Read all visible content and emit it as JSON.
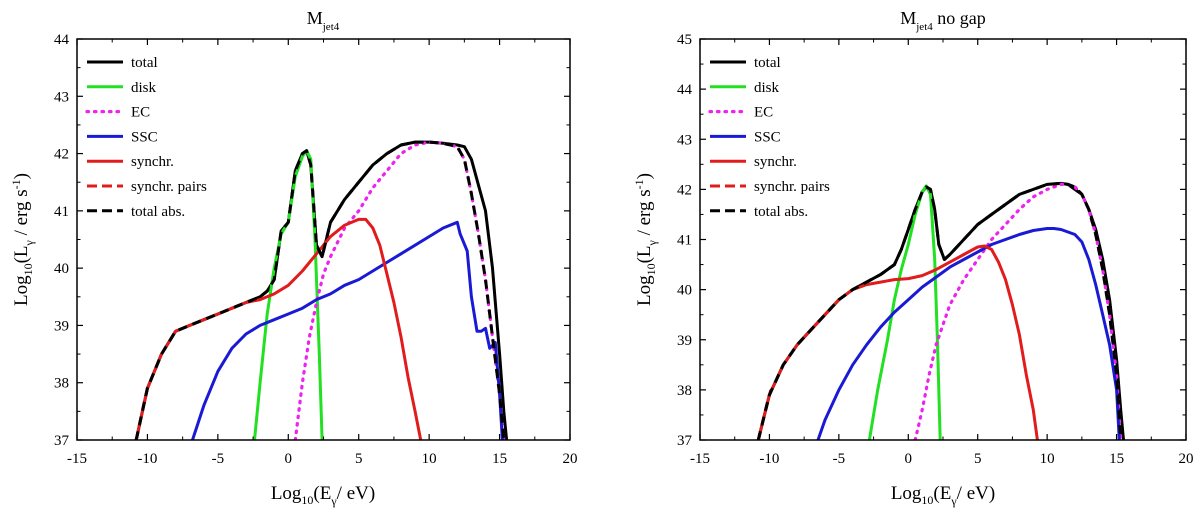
{
  "chart_data": [
    {
      "type": "line",
      "title": {
        "main": "M",
        "sub": "jet4",
        "suffix": ""
      },
      "xlabel": {
        "prefix": "Log",
        "base": "10",
        "open": "(E",
        "gamma": "γ",
        "rest": "/ eV)"
      },
      "ylabel": {
        "prefix": "Log",
        "base": "10",
        "open": "(L",
        "gamma": "γ",
        "rest": " / erg s",
        "exp": "-1",
        "close": ")"
      },
      "xlim": [
        -15,
        20
      ],
      "ylim": [
        37,
        44
      ],
      "xticks": [
        -15,
        -10,
        -5,
        0,
        5,
        10,
        15,
        20
      ],
      "yticks": [
        37,
        38,
        39,
        40,
        41,
        42,
        43,
        44
      ],
      "legend_position": "top-left",
      "series": [
        {
          "name": "total",
          "color": "#000000",
          "dash": "solid",
          "x": [
            -10.8,
            -10,
            -9,
            -8,
            -7,
            -6,
            -5,
            -4,
            -3,
            -2,
            -1.5,
            -1,
            -0.5,
            0,
            0.5,
            1,
            1.3,
            1.6,
            2.0,
            2.4,
            3.0,
            4,
            5,
            6,
            7,
            8,
            9,
            10,
            11,
            12,
            12.5,
            13,
            14,
            14.5,
            15,
            15.3,
            15.5
          ],
          "y": [
            37.0,
            37.9,
            38.5,
            38.9,
            39.0,
            39.1,
            39.2,
            39.3,
            39.4,
            39.5,
            39.6,
            39.8,
            40.65,
            40.8,
            41.7,
            42.0,
            42.05,
            41.8,
            40.4,
            40.2,
            40.8,
            41.2,
            41.5,
            41.8,
            42.0,
            42.15,
            42.2,
            42.2,
            42.18,
            42.15,
            42.12,
            41.9,
            41.0,
            40.0,
            38.5,
            37.5,
            37.0
          ]
        },
        {
          "name": "disk",
          "color": "#22e022",
          "dash": "solid",
          "x": [
            -2.4,
            -2.0,
            -1.5,
            -1,
            -0.5,
            0,
            0.5,
            1,
            1.3,
            1.6,
            1.9,
            2.2,
            2.4
          ],
          "y": [
            37.0,
            38.0,
            39.2,
            40.0,
            40.6,
            40.8,
            41.6,
            41.95,
            42.05,
            41.9,
            40.5,
            38.5,
            37.0
          ]
        },
        {
          "name": "EC",
          "color": "#ee22ee",
          "dash": "dot",
          "x": [
            0.5,
            1.0,
            1.5,
            2.0,
            2.5,
            3,
            4,
            5,
            6,
            7,
            8,
            9,
            10,
            11,
            12,
            12.5,
            13,
            13.5,
            14,
            14.5,
            15,
            15.3
          ],
          "y": [
            37.0,
            38.0,
            38.8,
            39.4,
            39.9,
            40.2,
            40.7,
            41.0,
            41.4,
            41.7,
            42.0,
            42.15,
            42.2,
            42.18,
            42.12,
            41.9,
            41.3,
            40.6,
            39.8,
            38.8,
            37.8,
            37.0
          ]
        },
        {
          "name": "SSC",
          "color": "#1a1ad4",
          "dash": "solid",
          "x": [
            -6.8,
            -6,
            -5,
            -4,
            -3,
            -2,
            -1,
            0,
            1,
            2,
            3,
            4,
            5,
            6,
            7,
            8,
            9,
            10,
            11,
            12,
            12.2,
            12.7,
            13.0,
            13.4,
            13.7,
            14.0,
            14.3,
            14.7,
            15.0,
            15.2
          ],
          "y": [
            37.0,
            37.6,
            38.2,
            38.6,
            38.85,
            39.0,
            39.1,
            39.2,
            39.3,
            39.45,
            39.55,
            39.7,
            39.8,
            39.95,
            40.1,
            40.25,
            40.4,
            40.55,
            40.7,
            40.8,
            40.6,
            40.3,
            39.5,
            38.9,
            38.9,
            38.95,
            38.6,
            38.7,
            37.8,
            37.0
          ]
        },
        {
          "name": "synchr.",
          "color": "#e01c1c",
          "dash": "solid",
          "x": [
            -10.8,
            -10,
            -9,
            -8,
            -7,
            -6,
            -5,
            -4,
            -3,
            -2,
            -1,
            0,
            1,
            2,
            3,
            4,
            5,
            5.5,
            6,
            6.5,
            7,
            7.5,
            8,
            8.5,
            9,
            9.4
          ],
          "y": [
            37.0,
            37.9,
            38.5,
            38.9,
            39.0,
            39.1,
            39.2,
            39.3,
            39.4,
            39.45,
            39.55,
            39.7,
            39.95,
            40.25,
            40.55,
            40.75,
            40.85,
            40.85,
            40.7,
            40.4,
            39.9,
            39.4,
            38.8,
            38.1,
            37.5,
            37.0
          ]
        },
        {
          "name": "synchr. pairs",
          "color": "#e01c1c",
          "dash": "dash",
          "x": [
            -10.8,
            -10.5,
            -10.2,
            -9.9
          ],
          "y": [
            37.0,
            37.35,
            37.7,
            38.0
          ]
        },
        {
          "name": "total abs.",
          "color": "#000000",
          "dash": "dash",
          "x": [
            -10.8,
            -10,
            -9,
            -8,
            -7,
            -6,
            -5,
            -4,
            -3,
            -2,
            -1.5,
            -1,
            -0.5,
            0,
            0.5,
            1,
            1.3,
            1.6,
            2.0,
            2.4,
            3,
            4,
            5,
            6,
            7,
            8,
            9,
            10,
            11,
            12,
            12.5,
            13,
            13.5,
            14,
            14.5,
            15,
            15.3
          ],
          "y": [
            37.0,
            37.9,
            38.5,
            38.9,
            39.0,
            39.1,
            39.2,
            39.3,
            39.4,
            39.5,
            39.6,
            39.8,
            40.65,
            40.8,
            41.7,
            42.0,
            42.05,
            41.8,
            40.4,
            40.2,
            40.8,
            41.2,
            41.5,
            41.8,
            42.0,
            42.15,
            42.2,
            42.2,
            42.18,
            42.12,
            41.9,
            41.3,
            40.6,
            39.8,
            38.8,
            37.8,
            37.0
          ]
        }
      ]
    },
    {
      "type": "line",
      "title": {
        "main": "M",
        "sub": "jet4",
        "suffix": " no gap"
      },
      "xlabel": {
        "prefix": "Log",
        "base": "10",
        "open": "(E",
        "gamma": "γ",
        "rest": "/ eV)"
      },
      "ylabel": {
        "prefix": "Log",
        "base": "10",
        "open": "(L",
        "gamma": "γ",
        "rest": " / erg s",
        "exp": "-1",
        "close": ")"
      },
      "xlim": [
        -15,
        20
      ],
      "ylim": [
        37,
        45
      ],
      "xticks": [
        -15,
        -10,
        -5,
        0,
        5,
        10,
        15,
        20
      ],
      "yticks": [
        37,
        38,
        39,
        40,
        41,
        42,
        43,
        44,
        45
      ],
      "legend_position": "top-left",
      "series": [
        {
          "name": "total",
          "color": "#000000",
          "dash": "solid",
          "x": [
            -10.8,
            -10,
            -9,
            -8,
            -7,
            -6,
            -5,
            -4,
            -3,
            -2,
            -1,
            -0.5,
            0,
            0.5,
            1,
            1.3,
            1.6,
            1.9,
            2.2,
            2.6,
            3,
            4,
            5,
            6,
            7,
            8,
            9,
            10,
            11,
            11.5,
            12,
            12.5,
            13,
            13.5,
            14,
            14.5,
            15,
            15.3,
            15.5
          ],
          "y": [
            37.0,
            37.9,
            38.5,
            38.9,
            39.2,
            39.5,
            39.8,
            40.0,
            40.15,
            40.3,
            40.5,
            40.8,
            41.2,
            41.6,
            41.95,
            42.05,
            42.0,
            41.6,
            40.9,
            40.6,
            40.7,
            41.0,
            41.3,
            41.5,
            41.7,
            41.9,
            42.0,
            42.1,
            42.12,
            42.1,
            42.0,
            41.9,
            41.6,
            41.2,
            40.6,
            39.8,
            38.6,
            37.6,
            37.0
          ]
        },
        {
          "name": "disk",
          "color": "#22e022",
          "dash": "solid",
          "x": [
            -2.8,
            -2.2,
            -1.5,
            -1,
            -0.5,
            0,
            0.5,
            1,
            1.3,
            1.6,
            1.9,
            2.1,
            2.3
          ],
          "y": [
            37.0,
            38.0,
            39.0,
            39.8,
            40.4,
            40.9,
            41.5,
            41.95,
            42.07,
            41.9,
            40.6,
            39.0,
            37.0
          ]
        },
        {
          "name": "EC",
          "color": "#ee22ee",
          "dash": "dot",
          "x": [
            0.5,
            1,
            1.5,
            2,
            2.5,
            3,
            4,
            5,
            6,
            7,
            8,
            9,
            10,
            11,
            11.5,
            12,
            12.5,
            13,
            13.5,
            14,
            14.5,
            15,
            15.3
          ],
          "y": [
            37.0,
            37.6,
            38.3,
            38.9,
            39.3,
            39.7,
            40.2,
            40.6,
            41.0,
            41.3,
            41.6,
            41.85,
            42.0,
            42.1,
            42.1,
            42.05,
            41.9,
            41.6,
            41.1,
            40.4,
            39.5,
            38.3,
            37.0
          ]
        },
        {
          "name": "SSC",
          "color": "#1a1ad4",
          "dash": "solid",
          "x": [
            -6.5,
            -6,
            -5,
            -4,
            -3,
            -2,
            -1,
            0,
            1,
            2,
            3,
            4,
            5,
            6,
            7,
            8,
            9,
            10,
            10.5,
            11,
            11.5,
            12,
            12.5,
            13,
            13.5,
            14,
            14.5,
            15,
            15.2
          ],
          "y": [
            37.0,
            37.4,
            38.0,
            38.5,
            38.9,
            39.25,
            39.55,
            39.8,
            40.05,
            40.25,
            40.45,
            40.6,
            40.75,
            40.9,
            41.0,
            41.1,
            41.18,
            41.22,
            41.22,
            41.2,
            41.15,
            41.1,
            40.95,
            40.6,
            40.1,
            39.5,
            38.9,
            38.0,
            37.0
          ]
        },
        {
          "name": "synchr.",
          "color": "#e01c1c",
          "dash": "solid",
          "x": [
            -10.8,
            -10,
            -9,
            -8,
            -7,
            -6,
            -5,
            -4,
            -3,
            -2,
            -1,
            0,
            1,
            2,
            3,
            4,
            5,
            5.5,
            6,
            6.5,
            7,
            7.5,
            8,
            8.5,
            9,
            9.3
          ],
          "y": [
            37.0,
            37.9,
            38.5,
            38.9,
            39.2,
            39.5,
            39.8,
            40.0,
            40.1,
            40.15,
            40.2,
            40.22,
            40.28,
            40.4,
            40.55,
            40.7,
            40.85,
            40.87,
            40.8,
            40.55,
            40.2,
            39.7,
            39.1,
            38.3,
            37.6,
            37.0
          ]
        },
        {
          "name": "synchr. pairs",
          "color": "#e01c1c",
          "dash": "dash",
          "x": [
            -10.8,
            -10.5,
            -10.2,
            -9.9
          ],
          "y": [
            37.0,
            37.35,
            37.7,
            38.0
          ]
        },
        {
          "name": "total abs.",
          "color": "#000000",
          "dash": "dash",
          "x": [
            -10.8,
            -10,
            -9,
            -8,
            -7,
            -6,
            -5,
            -4,
            -3,
            -2,
            -1,
            -0.5,
            0,
            0.5,
            1,
            1.3,
            1.6,
            1.9,
            2.2,
            2.6,
            3,
            4,
            5,
            6,
            7,
            8,
            9,
            10,
            11,
            11.5,
            12,
            12.5,
            13,
            13.5,
            14,
            14.5,
            15,
            15.3
          ],
          "y": [
            37.0,
            37.9,
            38.5,
            38.9,
            39.2,
            39.5,
            39.8,
            40.0,
            40.15,
            40.3,
            40.5,
            40.8,
            41.2,
            41.6,
            41.95,
            42.05,
            42.0,
            41.6,
            40.9,
            40.6,
            40.7,
            41.0,
            41.3,
            41.5,
            41.7,
            41.9,
            42.0,
            42.1,
            42.12,
            42.1,
            42.05,
            41.9,
            41.6,
            41.1,
            40.4,
            39.5,
            38.3,
            37.0
          ]
        }
      ]
    }
  ]
}
